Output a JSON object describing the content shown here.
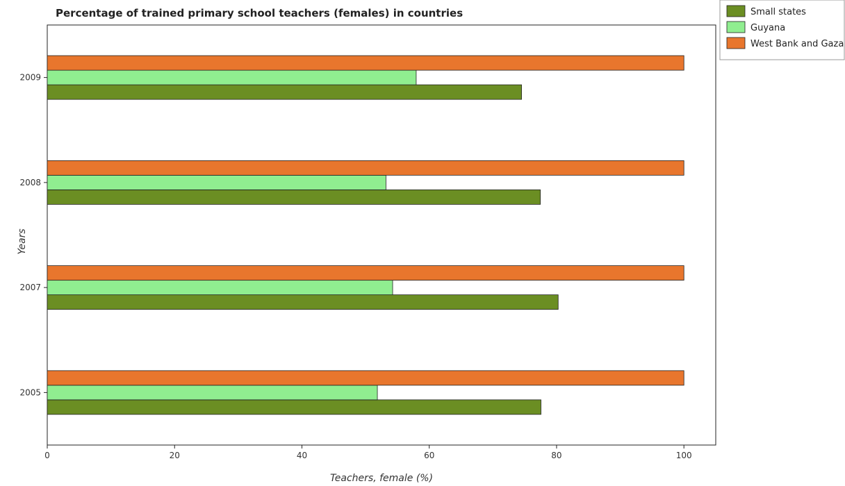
{
  "chart_data": {
    "type": "bar",
    "orientation": "horizontal",
    "title": "Percentage of trained primary school teachers (females) in countries",
    "xlabel": "Teachers, female (%)",
    "ylabel": "Years",
    "categories": [
      "2005",
      "2007",
      "2008",
      "2009"
    ],
    "xlim": [
      0,
      105
    ],
    "xticks": [
      0,
      20,
      40,
      60,
      80,
      100
    ],
    "series": [
      {
        "name": "Small states",
        "color": "#6b8e23",
        "values": [
          77.55,
          80.25,
          77.45,
          74.5
        ]
      },
      {
        "name": "Guyana",
        "color": "#90ee90",
        "values": [
          51.85,
          54.25,
          53.2,
          57.95
        ]
      },
      {
        "name": "West Bank and Gaza",
        "color": "#e8762d",
        "values": [
          100,
          100,
          100,
          100
        ]
      }
    ],
    "legend": "top-right",
    "grid": false
  }
}
